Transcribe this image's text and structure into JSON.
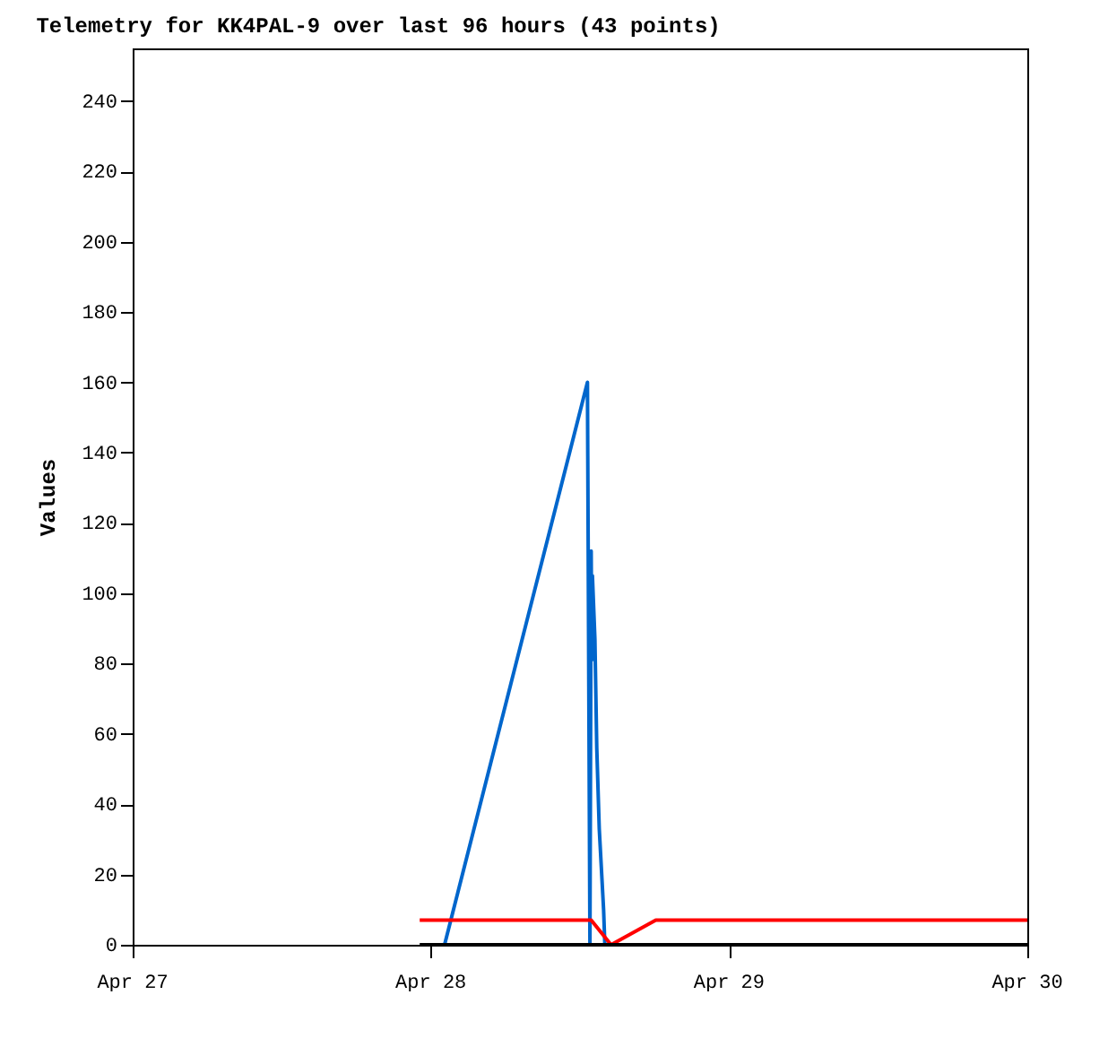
{
  "chart_data": {
    "type": "line",
    "title": "Telemetry for KK4PAL-9 over last 96 hours (43 points)",
    "ylabel": "Values",
    "xlim": [
      "--04-27",
      "--04-30"
    ],
    "xticks": [
      {
        "value": "--04-27",
        "label": "Apr 27"
      },
      {
        "value": "--04-28",
        "label": "Apr 28"
      },
      {
        "value": "--04-29",
        "label": "Apr 29"
      },
      {
        "value": "--04-30",
        "label": "Apr 30"
      }
    ],
    "ylim": [
      0,
      255
    ],
    "yticks": [
      0,
      20,
      40,
      60,
      80,
      100,
      120,
      140,
      160,
      180,
      200,
      220,
      240
    ],
    "grid": false,
    "marker": "none",
    "line_style": "solid",
    "series": [
      {
        "color": "#0066cc",
        "x": [
          "--04-28T01:06",
          "--04-28T12:36",
          "--04-28T12:48",
          "--04-28T12:54",
          "--04-28T12:57",
          "--04-28T13:00",
          "--04-28T13:12",
          "--04-28T13:21",
          "--04-28T13:33",
          "--04-28T13:54",
          "--04-28T14:00"
        ],
        "values": [
          0,
          160,
          0,
          112,
          81,
          105,
          87,
          56,
          33,
          10,
          0
        ]
      },
      {
        "color": "#ff0000",
        "x": [
          "--04-27T23:06",
          "--04-28T12:54",
          "--04-28T14:30",
          "--04-28T18:06",
          "--04-30"
        ],
        "values": [
          7,
          7,
          0,
          7,
          7
        ]
      },
      {
        "color": "#000000",
        "x": [
          "--04-27T23:06",
          "--04-30"
        ],
        "values": [
          0,
          0
        ]
      }
    ]
  }
}
